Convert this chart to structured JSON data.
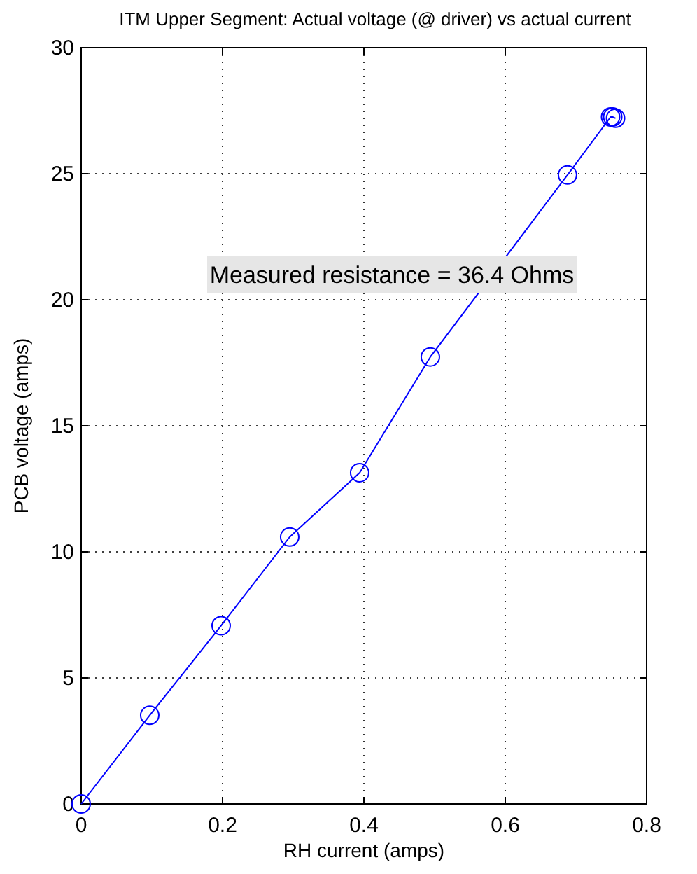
{
  "chart_data": {
    "type": "line",
    "title": "ITM Upper Segment: Actual voltage (@ driver) vs actual current",
    "xlabel": "RH current (amps)",
    "ylabel": "PCB voltage (amps)",
    "x": [
      0,
      0.097,
      0.198,
      0.295,
      0.394,
      0.494,
      0.688,
      0.749,
      0.752,
      0.756
    ],
    "series": [
      {
        "color": "#0000ff",
        "values": [
          0,
          3.52,
          7.07,
          10.59,
          13.14,
          17.73,
          24.95,
          27.25,
          27.25,
          27.2
        ]
      }
    ],
    "xlim": [
      0,
      0.8
    ],
    "xticks": [
      0,
      0.2,
      0.4,
      0.6,
      0.8
    ],
    "ylim": [
      0,
      30
    ],
    "yticks": [
      0,
      5,
      10,
      15,
      20,
      25,
      30
    ],
    "grid": true,
    "marker": "circle",
    "line_style": "solid",
    "annotations": [
      "Measured resistance = 36.4 Ohms"
    ]
  }
}
